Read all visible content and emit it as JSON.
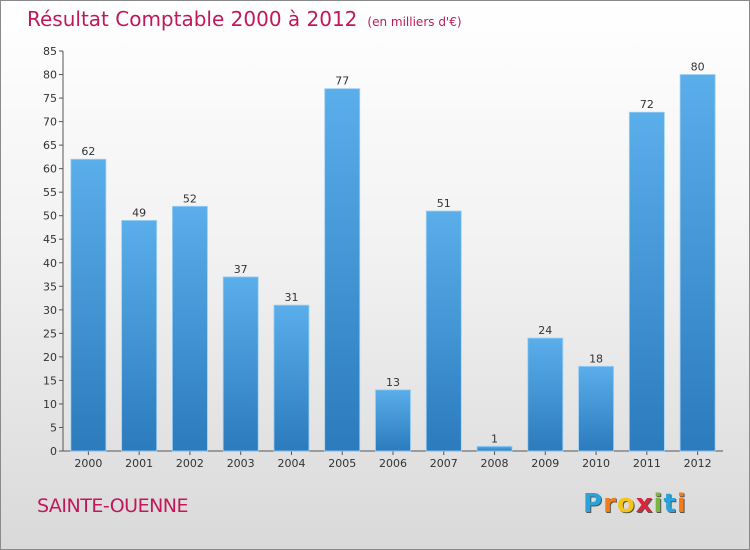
{
  "chart_data": {
    "type": "bar",
    "title": "Résultat Comptable 2000 à 2012",
    "unit": "(en milliers d'€)",
    "categories": [
      "2000",
      "2001",
      "2002",
      "2003",
      "2004",
      "2005",
      "2006",
      "2007",
      "2008",
      "2009",
      "2010",
      "2011",
      "2012"
    ],
    "values": [
      62,
      49,
      52,
      37,
      31,
      77,
      13,
      51,
      1,
      24,
      18,
      72,
      80
    ],
    "ylim": [
      0,
      85
    ],
    "yticks": [
      0,
      5,
      10,
      15,
      20,
      25,
      30,
      35,
      40,
      45,
      50,
      55,
      60,
      65,
      70,
      75,
      80,
      85
    ],
    "grid": false,
    "bar_color": "#4aa0e0"
  },
  "commune": "SAINTE-OUENNE",
  "logo": {
    "letters": [
      "P",
      "r",
      "o",
      "x",
      "i",
      "t",
      "i"
    ],
    "colors": [
      "#29a3d8",
      "#f07c1a",
      "#f4c41a",
      "#d7263d",
      "#7cb342",
      "#29a3d8",
      "#f07c1a"
    ]
  }
}
